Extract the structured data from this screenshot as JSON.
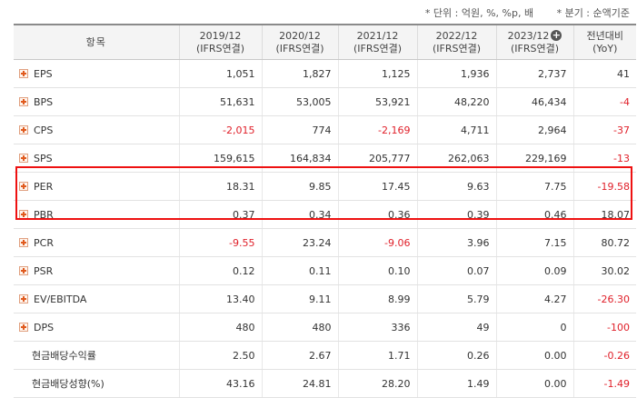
{
  "notes": {
    "unit": "* 단위 : 억원, %, %p, 배",
    "quarter": "* 분기 : 순액기준"
  },
  "headers": {
    "item": "항목",
    "columns": [
      {
        "period": "2019/12",
        "basis": "(IFRS연결)"
      },
      {
        "period": "2020/12",
        "basis": "(IFRS연결)"
      },
      {
        "period": "2021/12",
        "basis": "(IFRS연결)"
      },
      {
        "period": "2022/12",
        "basis": "(IFRS연결)"
      },
      {
        "period": "2023/12",
        "basis": "(IFRS연결)"
      }
    ],
    "yoy": {
      "line1": "전년대비",
      "line2": "(YoY)"
    }
  },
  "rows": [
    {
      "label": "EPS",
      "expandable": true,
      "values": [
        "1,051",
        "1,827",
        "1,125",
        "1,936",
        "2,737",
        "41"
      ]
    },
    {
      "label": "BPS",
      "expandable": true,
      "values": [
        "51,631",
        "53,005",
        "53,921",
        "48,220",
        "46,434",
        "-4"
      ]
    },
    {
      "label": "CPS",
      "expandable": true,
      "values": [
        "-2,015",
        "774",
        "-2,169",
        "4,711",
        "2,964",
        "-37"
      ]
    },
    {
      "label": "SPS",
      "expandable": true,
      "values": [
        "159,615",
        "164,834",
        "205,777",
        "262,063",
        "229,169",
        "-13"
      ]
    },
    {
      "label": "PER",
      "expandable": true,
      "values": [
        "18.31",
        "9.85",
        "17.45",
        "9.63",
        "7.75",
        "-19.58"
      ]
    },
    {
      "label": "PBR",
      "expandable": true,
      "values": [
        "0.37",
        "0.34",
        "0.36",
        "0.39",
        "0.46",
        "18.07"
      ]
    },
    {
      "label": "PCR",
      "expandable": true,
      "values": [
        "-9.55",
        "23.24",
        "-9.06",
        "3.96",
        "7.15",
        "80.72"
      ]
    },
    {
      "label": "PSR",
      "expandable": true,
      "values": [
        "0.12",
        "0.11",
        "0.10",
        "0.07",
        "0.09",
        "30.02"
      ]
    },
    {
      "label": "EV/EBITDA",
      "expandable": true,
      "values": [
        "13.40",
        "9.11",
        "8.99",
        "5.79",
        "4.27",
        "-26.30"
      ]
    },
    {
      "label": "DPS",
      "expandable": true,
      "values": [
        "480",
        "480",
        "336",
        "49",
        "0",
        "-100"
      ]
    },
    {
      "label": "현금배당수익률",
      "expandable": false,
      "values": [
        "2.50",
        "2.67",
        "1.71",
        "0.26",
        "0.00",
        "-0.26"
      ]
    },
    {
      "label": "현금배당성향(%)",
      "expandable": false,
      "values": [
        "43.16",
        "24.81",
        "28.20",
        "1.49",
        "0.00",
        "-1.49"
      ]
    }
  ],
  "colors": {
    "negative": "#e0202a",
    "highlight": "#ee1111"
  }
}
